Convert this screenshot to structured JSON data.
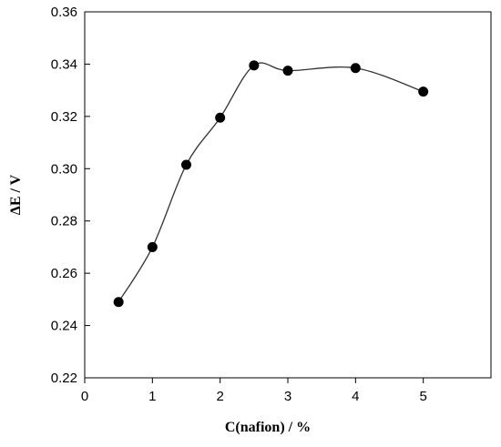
{
  "chart_data": {
    "type": "scatter",
    "title": "",
    "xlabel": "C(nafion) / %",
    "ylabel": "ΔE / V",
    "xlim": [
      0,
      6
    ],
    "ylim": [
      0.22,
      0.36
    ],
    "x_ticks": [
      0,
      1,
      2,
      3,
      4,
      5
    ],
    "y_ticks": [
      0.22,
      0.24,
      0.26,
      0.28,
      0.3,
      0.32,
      0.34,
      0.36
    ],
    "x_tick_labels": [
      "0",
      "1",
      "2",
      "3",
      "4",
      "5"
    ],
    "y_tick_labels": [
      "0.22",
      "0.24",
      "0.26",
      "0.28",
      "0.30",
      "0.32",
      "0.34",
      "0.36"
    ],
    "grid": false,
    "legend": "none",
    "smooth_line": true,
    "colors": {
      "line": "#333333",
      "marker": "#000000",
      "axis": "#000000"
    },
    "series": [
      {
        "x": [
          0.5,
          1.0,
          1.5,
          2.0,
          2.5,
          3.0,
          4.0,
          5.0
        ],
        "y": [
          0.249,
          0.27,
          0.3015,
          0.3195,
          0.3395,
          0.3375,
          0.3385,
          0.3295
        ]
      }
    ]
  }
}
